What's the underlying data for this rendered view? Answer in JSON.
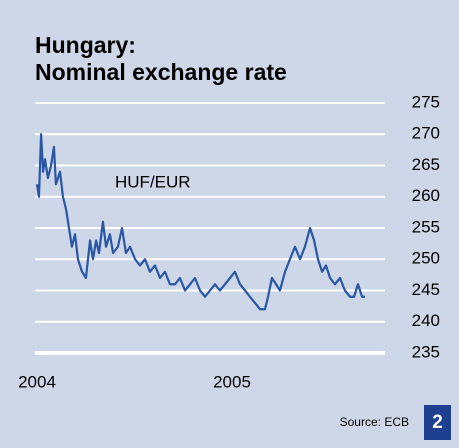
{
  "chart_data": {
    "type": "line",
    "title": "Hungary:",
    "subtitle": "Nominal exchange rate",
    "annotation": "HUF/EUR",
    "source": "Source: ECB",
    "x": [
      2004.0,
      2004.01,
      2004.021,
      2004.031,
      2004.041,
      2004.056,
      2004.072,
      2004.087,
      2004.097,
      2004.118,
      2004.133,
      2004.149,
      2004.164,
      2004.179,
      2004.195,
      2004.21,
      2004.231,
      2004.251,
      2004.272,
      2004.287,
      2004.303,
      2004.318,
      2004.338,
      2004.354,
      2004.374,
      2004.39,
      2004.415,
      2004.436,
      2004.456,
      2004.477,
      2004.503,
      2004.528,
      2004.554,
      2004.579,
      2004.605,
      2004.631,
      2004.656,
      2004.682,
      2004.708,
      2004.733,
      2004.759,
      2004.785,
      2004.81,
      2004.836,
      2004.862,
      2004.887,
      2004.913,
      2004.938,
      2004.964,
      2004.99,
      2005.015,
      2005.041,
      2005.067,
      2005.092,
      2005.118,
      2005.144,
      2005.169,
      2005.185,
      2005.205,
      2005.226,
      2005.246,
      2005.272,
      2005.297,
      2005.323,
      2005.349,
      2005.374,
      2005.4,
      2005.421,
      2005.441,
      2005.462,
      2005.482,
      2005.503,
      2005.528,
      2005.554,
      2005.579,
      2005.605,
      2005.626,
      2005.646,
      2005.667,
      2005.682
    ],
    "series": [
      {
        "name": "HUF/EUR",
        "color": "#2a56a6",
        "values": [
          262,
          260,
          270,
          264,
          266,
          263,
          265,
          268,
          262,
          264,
          260,
          258,
          255,
          252,
          254,
          250,
          248,
          247,
          253,
          250,
          253,
          251,
          256,
          252,
          254,
          251,
          252,
          255,
          251,
          252,
          250,
          249,
          250,
          248,
          249,
          247,
          248,
          246,
          246,
          247,
          245,
          246,
          247,
          245,
          244,
          245,
          246,
          245,
          246,
          247,
          248,
          246,
          245,
          244,
          243,
          242,
          242,
          244,
          247,
          246,
          245,
          248,
          250,
          252,
          250,
          252,
          255,
          253,
          250,
          248,
          249,
          247,
          246,
          247,
          245,
          244,
          244,
          246,
          244,
          244
        ]
      }
    ],
    "xlim": [
      2004,
      2005.8
    ],
    "xticks": [
      2004,
      2005
    ],
    "ylim": [
      235,
      275
    ],
    "yticks": [
      235,
      240,
      245,
      250,
      255,
      260,
      265,
      270,
      275
    ],
    "grid": true,
    "background": "#cdd7e7"
  },
  "page_number": "2"
}
